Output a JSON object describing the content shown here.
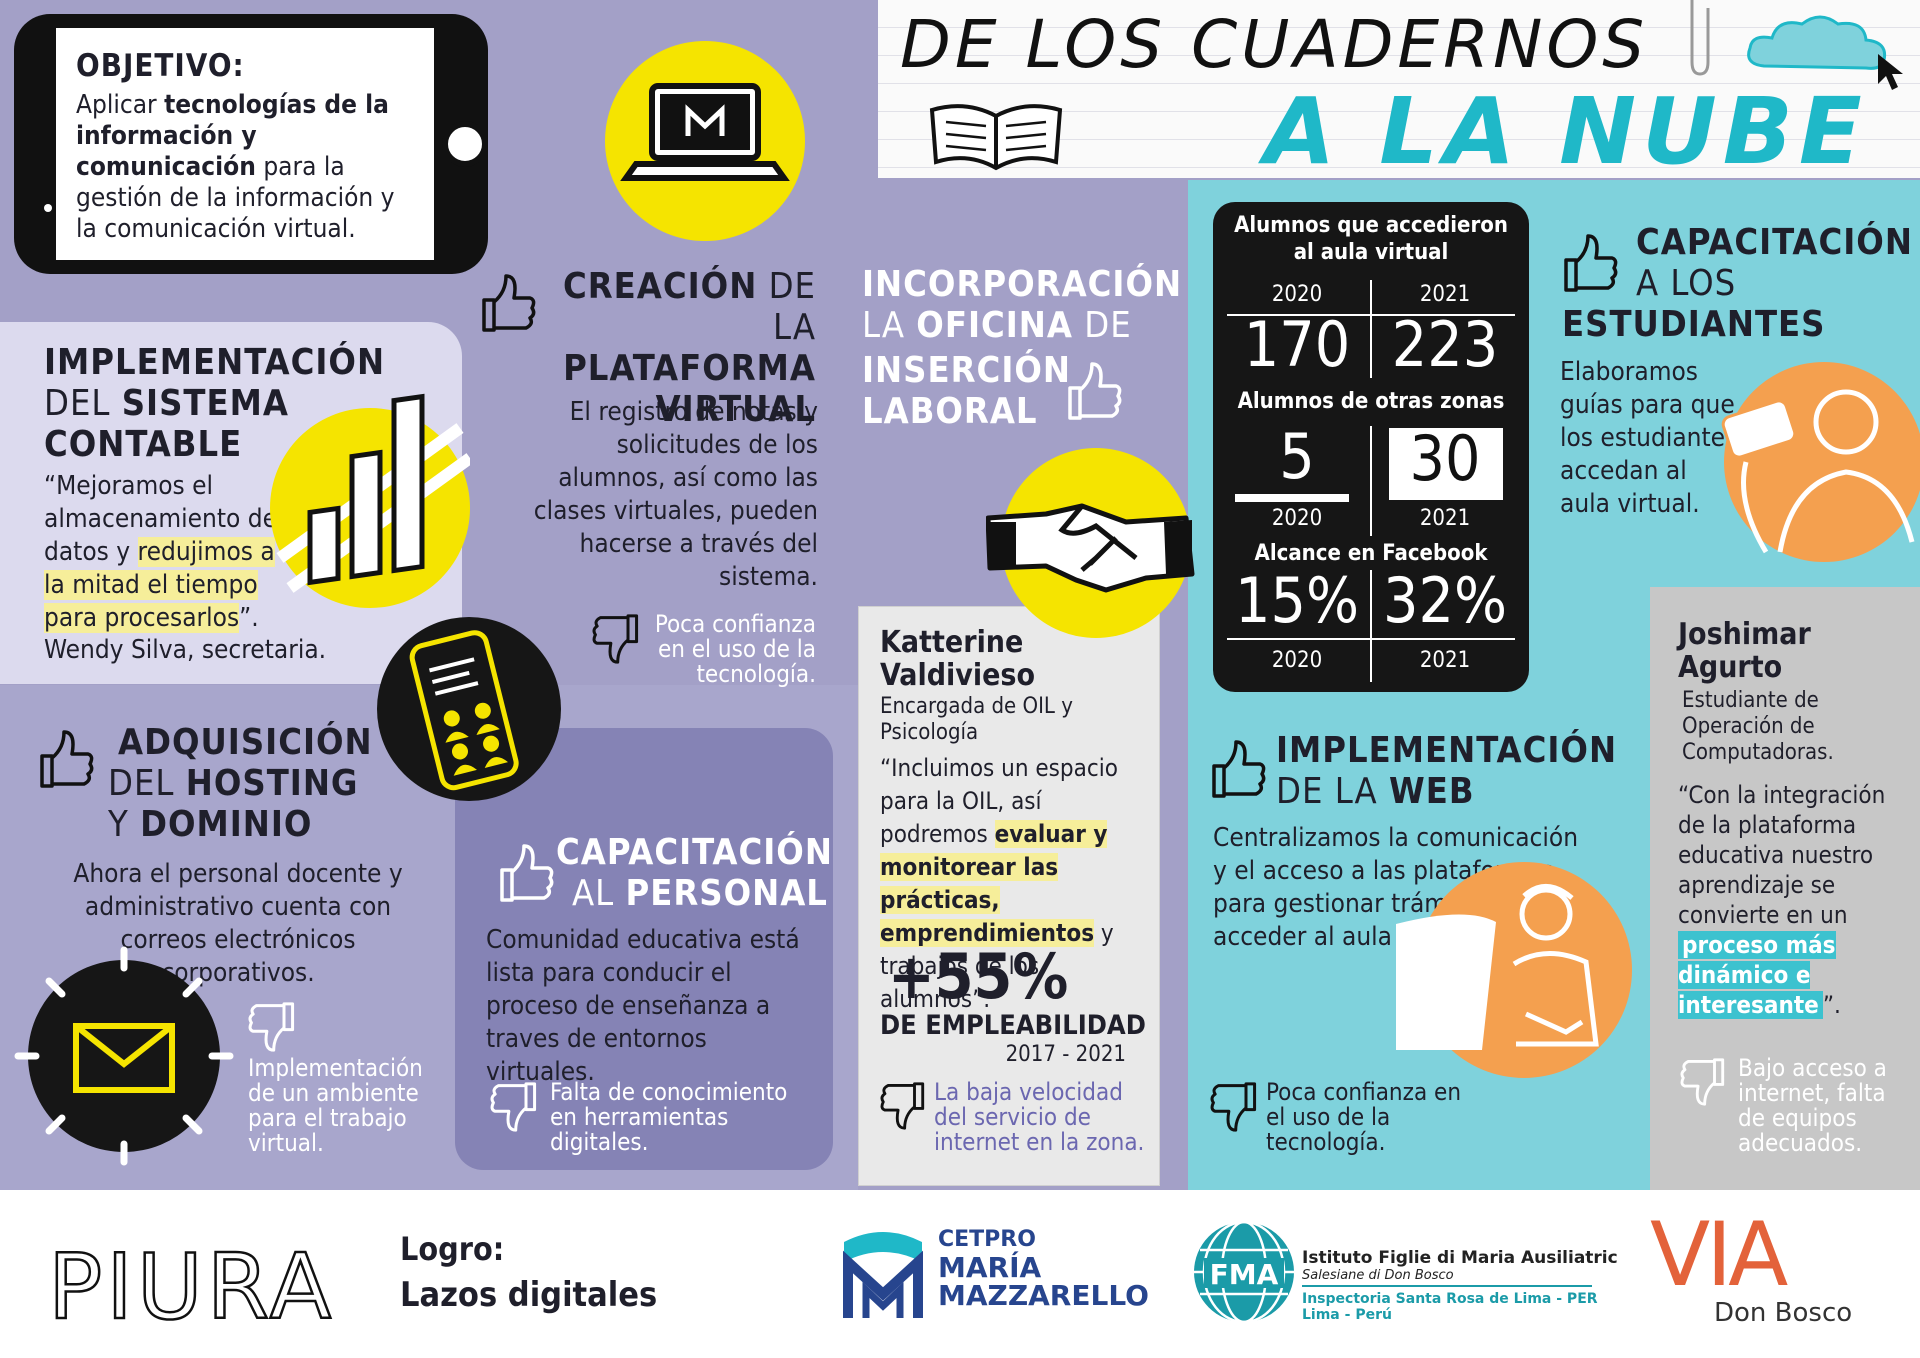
{
  "header": {
    "title_line1": "DE LOS CUADERNOS",
    "title_line2": "A LA NUBE"
  },
  "objetivo": {
    "title": "OBJETIVO:",
    "text_pre": "Aplicar ",
    "text_bold": "tecnologías de la información y comunicación",
    "text_post": " para la gestión de la información y la comunicación virtual."
  },
  "contable": {
    "title_1": "IMPLEMENTACIÓN",
    "title_2a": "DEL ",
    "title_2b": "SISTEMA",
    "title_3": "CONTABLE",
    "quote_pre": "“Mejoramos el almacenamiento de datos y ",
    "quote_hl": "redujimos a la mitad el tiempo para procesarlos",
    "quote_post": "”.",
    "author": "Wendy Silva, secretaria."
  },
  "plataforma": {
    "title_1a": "CREACIÓN",
    "title_1b": " DE LA",
    "title_2": "PLATAFORMA",
    "title_3": "VIRTUAL",
    "text": "El registro de notas y solicitudes de los alumnos, así como las clases virtuales, pueden hacerse a través del sistema.",
    "con": "Poca confianza en el uso de la tecnología."
  },
  "hosting": {
    "title_1": "ADQUISICIÓN",
    "title_2a": "DEL ",
    "title_2b": "HOSTING",
    "title_3a": "Y ",
    "title_3b": "DOMINIO",
    "text": "Ahora el personal docente y administrativo cuenta con correos electrónicos corporativos.",
    "con": "Implementación de un ambiente para el trabajo virtual."
  },
  "personal": {
    "title_1": "CAPACITACIÓN",
    "title_2a": "AL ",
    "title_2b": "PERSONAL",
    "text": "Comunidad educativa está lista para conducir el proceso de enseñanza a traves de entornos virtuales.",
    "con": "Falta de conocimiento en herramientas digitales."
  },
  "oficina": {
    "title_1": "INCORPORACIÓN",
    "title_2a": "LA ",
    "title_2b": "OFICINA",
    "title_2c": " DE",
    "title_3": "INSERCIÓN",
    "title_4": "LABORAL"
  },
  "katterine": {
    "name_1": "Katterine",
    "name_2": "Valdivieso",
    "role": "Encargada de OIL y Psicología",
    "quote_pre": "“Incluimos un espacio para la OIL, así podremos ",
    "quote_hl": "evaluar y monitorear las prácticas, emprendimientos",
    "quote_post": " y trabajos de los alumnos”.",
    "stat": "+55%",
    "stat_label": "DE EMPLEABILIDAD",
    "stat_years": "2017 - 2021",
    "con": "La baja velocidad del servicio de internet en la zona."
  },
  "stats": {
    "label_1": "Alumnos que accedieron al aula virtual",
    "y2020": "2020",
    "y2021": "2021",
    "aula_2020": "170",
    "aula_2021": "223",
    "label_2": "Alumnos de otras zonas",
    "zonas_2020": "5",
    "zonas_2021": "30",
    "label_3": "Alcance en Facebook",
    "fb_2020": "15%",
    "fb_2021": "32%"
  },
  "estudiantes": {
    "title_1": "CAPACITACIÓN",
    "title_2": "A LOS",
    "title_3": "ESTUDIANTES",
    "text": "Elaboramos guías para que los estudiantes accedan al aula virtual."
  },
  "web": {
    "title_1": "IMPLEMENTACIÓN",
    "title_2a": "DE LA ",
    "title_2b": "WEB",
    "text": "Centralizamos la comunicación y el acceso a las plataformas para gestionar trámites y acceder al aula virtual.",
    "con": "Poca confianza en el uso de la tecnología."
  },
  "joshimar": {
    "name_1": "Joshimar",
    "name_2": "Agurto",
    "role": "Estudiante de Operación de Computadoras.",
    "quote_pre": "“Con la integración de la plataforma educativa nuestro aprendizaje se convierte en un ",
    "quote_hl": "proceso más dinámico e interesante",
    "quote_post": "”.",
    "con": "Bajo acceso a internet, falta de equipos adecuados."
  },
  "footer": {
    "region": "PIURA",
    "logro_label": "Logro:",
    "logro_text": "Lazos digitales",
    "cetpro_1": "CETPRO",
    "cetpro_2": "MARÍA",
    "cetpro_3": "MAZZARELLO",
    "fma_mark": "FMA",
    "fma_1": "Istituto Figlie di Maria Ausiliatric",
    "fma_2": "Salesiane di Don Bosco",
    "fma_3": "Inspectoria Santa Rosa de Lima - PER",
    "fma_4": "Lima - Perú",
    "via": "VIA",
    "via_sub": "Don Bosco"
  },
  "colors": {
    "lavender": "#a3a0c7",
    "cyan": "#7fd2dc",
    "title_cyan": "#1fb8c8",
    "yellow": "#f5e400",
    "orange": "#f4a04f"
  }
}
